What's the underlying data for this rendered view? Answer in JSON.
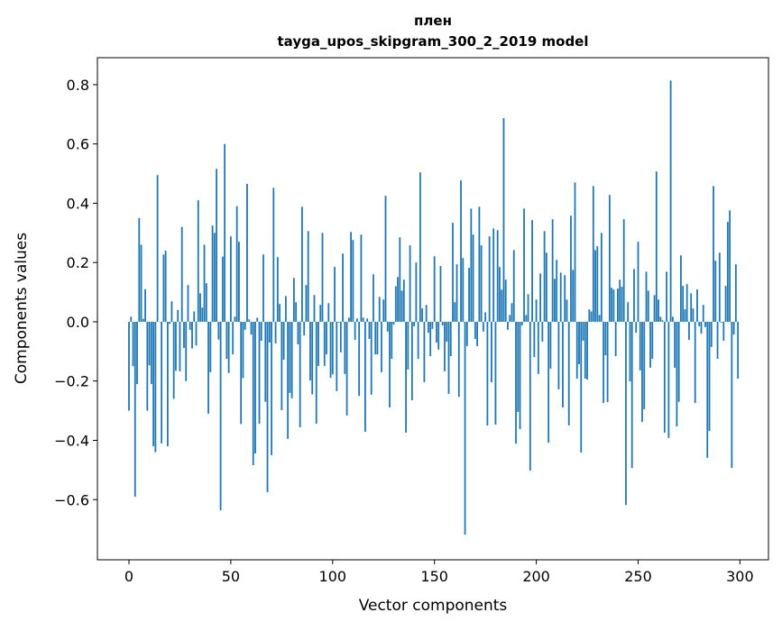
{
  "chart_data": {
    "type": "bar",
    "title": "плен",
    "subtitle": "tayga_upos_skipgram_300_2_2019 model",
    "xlabel": "Vector components",
    "ylabel": "Components values",
    "xlim": [
      -15.5,
      314
    ],
    "ylim": [
      -0.803,
      0.891
    ],
    "xticks": [
      0,
      50,
      100,
      150,
      200,
      250,
      300
    ],
    "yticks": [
      -0.6,
      -0.4,
      -0.2,
      0.0,
      0.2,
      0.4,
      0.6,
      0.8
    ],
    "ytick_labels": [
      "−0.6",
      "−0.4",
      "−0.2",
      "0.0",
      "0.2",
      "0.4",
      "0.6",
      "0.8"
    ],
    "grid": false,
    "bar_color": "#1f77b4",
    "values": [
      -0.3,
      0.017,
      -0.15,
      -0.59,
      -0.21,
      0.35,
      0.26,
      0.01,
      0.11,
      -0.3,
      -0.147,
      -0.21,
      -0.42,
      -0.44,
      0.495,
      0.0,
      -0.41,
      0.227,
      0.24,
      -0.42,
      -0.007,
      0.069,
      -0.26,
      -0.165,
      0.04,
      -0.167,
      0.32,
      -0.088,
      -0.2,
      0.124,
      -0.027,
      -0.09,
      0.035,
      -0.08,
      0.41,
      0.096,
      0.048,
      0.26,
      0.13,
      -0.31,
      -0.17,
      0.325,
      0.3,
      0.516,
      -0.06,
      -0.636,
      0.22,
      0.6,
      -0.125,
      -0.173,
      0.288,
      -0.11,
      0.017,
      0.39,
      0.27,
      -0.345,
      -0.19,
      -0.027,
      0.465,
      0.008,
      -0.043,
      -0.484,
      -0.444,
      0.014,
      -0.344,
      -0.064,
      0.227,
      -0.27,
      -0.575,
      -0.07,
      -0.45,
      0.452,
      -0.073,
      0.218,
      0.06,
      -0.298,
      -0.128,
      0.087,
      -0.395,
      -0.24,
      -0.258,
      0.148,
      0.066,
      -0.076,
      -0.356,
      0.388,
      -0.046,
      0.124,
      0.306,
      -0.198,
      -0.245,
      0.09,
      -0.344,
      -0.149,
      0.057,
      0.3,
      -0.149,
      -0.11,
      0.063,
      -0.189,
      -0.177,
      0.185,
      -0.234,
      -0.003,
      -0.103,
      0.23,
      -0.176,
      -0.316,
      0.014,
      0.303,
      0.276,
      -0.061,
      0.011,
      -0.25,
      0.294,
      0.014,
      -0.371,
      0.011,
      -0.058,
      -0.246,
      0.16,
      -0.11,
      -0.11,
      0.084,
      -0.17,
      0.075,
      0.425,
      -0.033,
      -0.289,
      -0.125,
      -0.009,
      0.12,
      0.151,
      0.285,
      0.105,
      0.142,
      -0.374,
      -0.161,
      0.258,
      -0.265,
      -0.015,
      0.2,
      -0.125,
      0.504,
      0.045,
      -0.204,
      0.057,
      -0.037,
      -0.116,
      -0.024,
      0.221,
      -0.07,
      -0.094,
      0.188,
      -0.012,
      -0.167,
      -0.067,
      -0.243,
      -0.116,
      0.334,
      0.066,
      0.194,
      -0.253,
      0.477,
      0.215,
      -0.718,
      -0.082,
      0.182,
      0.382,
      0.294,
      -0.058,
      -0.082,
      0.388,
      0.258,
      -0.033,
      0.032,
      -0.35,
      0.288,
      -0.204,
      0.315,
      -0.347,
      0.309,
      0.185,
      0.108,
      0.687,
      0.142,
      -0.027,
      0.023,
      0.063,
      0.242,
      -0.411,
      -0.304,
      -0.362,
      -0.012,
      0.382,
      0.023,
      0.093,
      -0.502,
      0.343,
      -0.119,
      0.075,
      -0.176,
      0.163,
      -0.067,
      0.306,
      0.233,
      -0.408,
      -0.158,
      0.346,
      0.145,
      0.209,
      -0.228,
      0.166,
      -0.289,
      0.157,
      0.075,
      -0.35,
      0.358,
      0.175,
      0.47,
      -0.192,
      -0.143,
      -0.441,
      -0.064,
      -0.192,
      -0.195,
      0.042,
      0.035,
      0.458,
      0.242,
      0.255,
      0.023,
      0.3,
      -0.274,
      -0.113,
      -0.271,
      0.428,
      0.115,
      0.109,
      -0.116,
      0.112,
      0.142,
      0.118,
      0.346,
      -0.618,
      0.066,
      -0.201,
      -0.493,
      0.178,
      -0.037,
      0.27,
      -0.164,
      -0.338,
      -0.295,
      0.169,
      0.105,
      -0.155,
      -0.125,
      0.09,
      0.507,
      0.075,
      0.017,
      0.005,
      -0.374,
      0.169,
      -0.392,
      0.814,
      0.017,
      -0.155,
      -0.353,
      -0.27,
      0.224,
      0.121,
      0.042,
      0.127,
      -0.061,
      0.096,
      0.045,
      -0.274,
      0.109,
      -0.015,
      -0.04,
      0.057,
      -0.018,
      -0.459,
      -0.368,
      -0.085,
      0.458,
      0.206,
      -0.125,
      0.233,
      -0.003,
      -0.064,
      0.121,
      0.337,
      0.376,
      -0.493,
      -0.043,
      0.194,
      -0.192
    ]
  }
}
